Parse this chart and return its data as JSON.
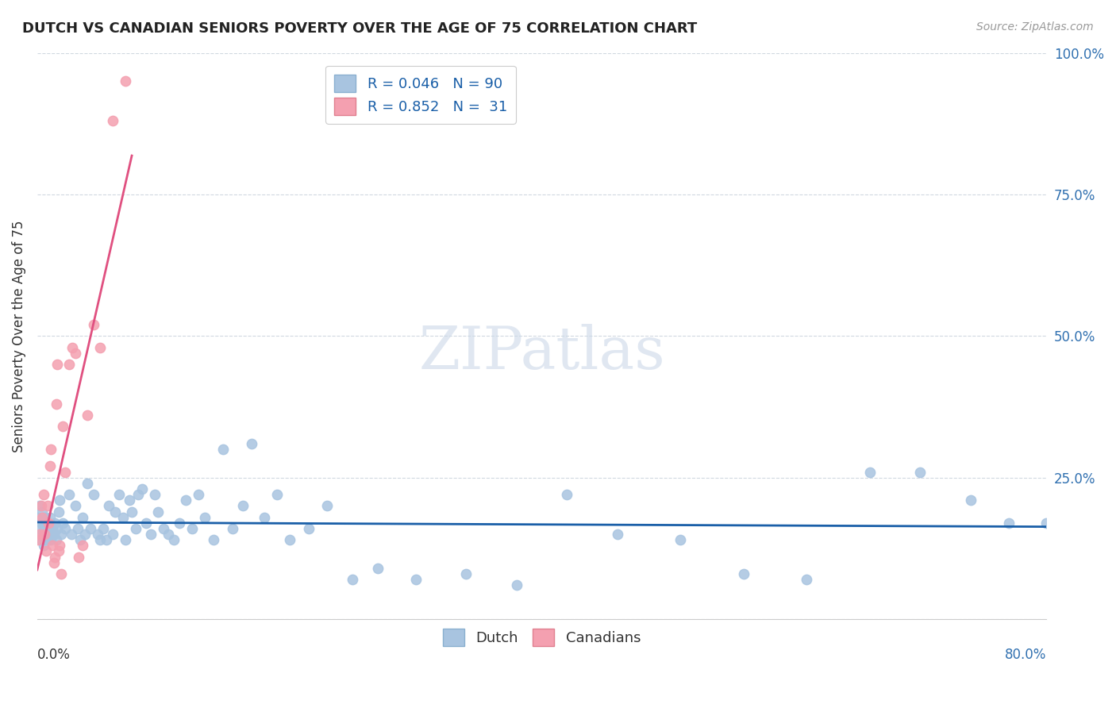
{
  "title": "DUTCH VS CANADIAN SENIORS POVERTY OVER THE AGE OF 75 CORRELATION CHART",
  "source": "Source: ZipAtlas.com",
  "ylabel": "Seniors Poverty Over the Age of 75",
  "yticks": [
    0.0,
    0.25,
    0.5,
    0.75,
    1.0
  ],
  "ytick_labels": [
    "",
    "25.0%",
    "50.0%",
    "75.0%",
    "100.0%"
  ],
  "xlim": [
    0.0,
    0.8
  ],
  "ylim": [
    0.0,
    1.0
  ],
  "dutch_x": [
    0.001,
    0.002,
    0.002,
    0.003,
    0.003,
    0.004,
    0.004,
    0.005,
    0.005,
    0.006,
    0.006,
    0.007,
    0.007,
    0.008,
    0.009,
    0.01,
    0.01,
    0.011,
    0.012,
    0.013,
    0.014,
    0.015,
    0.016,
    0.017,
    0.018,
    0.019,
    0.02,
    0.022,
    0.025,
    0.027,
    0.03,
    0.032,
    0.034,
    0.036,
    0.038,
    0.04,
    0.042,
    0.045,
    0.048,
    0.05,
    0.052,
    0.055,
    0.057,
    0.06,
    0.062,
    0.065,
    0.068,
    0.07,
    0.073,
    0.075,
    0.078,
    0.08,
    0.083,
    0.086,
    0.09,
    0.093,
    0.096,
    0.1,
    0.104,
    0.108,
    0.113,
    0.118,
    0.123,
    0.128,
    0.133,
    0.14,
    0.147,
    0.155,
    0.163,
    0.17,
    0.18,
    0.19,
    0.2,
    0.215,
    0.23,
    0.25,
    0.27,
    0.3,
    0.34,
    0.38,
    0.42,
    0.46,
    0.51,
    0.56,
    0.61,
    0.66,
    0.7,
    0.74,
    0.77,
    0.8
  ],
  "dutch_y": [
    0.18,
    0.16,
    0.2,
    0.14,
    0.17,
    0.15,
    0.19,
    0.13,
    0.16,
    0.14,
    0.18,
    0.15,
    0.17,
    0.14,
    0.16,
    0.15,
    0.18,
    0.14,
    0.16,
    0.15,
    0.17,
    0.14,
    0.16,
    0.19,
    0.21,
    0.15,
    0.17,
    0.16,
    0.22,
    0.15,
    0.2,
    0.16,
    0.14,
    0.18,
    0.15,
    0.24,
    0.16,
    0.22,
    0.15,
    0.14,
    0.16,
    0.14,
    0.2,
    0.15,
    0.19,
    0.22,
    0.18,
    0.14,
    0.21,
    0.19,
    0.16,
    0.22,
    0.23,
    0.17,
    0.15,
    0.22,
    0.19,
    0.16,
    0.15,
    0.14,
    0.17,
    0.21,
    0.16,
    0.22,
    0.18,
    0.14,
    0.3,
    0.16,
    0.2,
    0.31,
    0.18,
    0.22,
    0.14,
    0.16,
    0.2,
    0.07,
    0.09,
    0.07,
    0.08,
    0.06,
    0.22,
    0.15,
    0.14,
    0.08,
    0.07,
    0.26,
    0.26,
    0.21,
    0.17,
    0.17
  ],
  "canadians_x": [
    0.001,
    0.002,
    0.003,
    0.004,
    0.005,
    0.006,
    0.007,
    0.008,
    0.009,
    0.01,
    0.011,
    0.012,
    0.013,
    0.014,
    0.015,
    0.016,
    0.017,
    0.018,
    0.019,
    0.02,
    0.022,
    0.025,
    0.028,
    0.03,
    0.033,
    0.036,
    0.04,
    0.045,
    0.05,
    0.06,
    0.07
  ],
  "canadians_y": [
    0.14,
    0.15,
    0.2,
    0.18,
    0.22,
    0.15,
    0.12,
    0.2,
    0.17,
    0.27,
    0.3,
    0.13,
    0.1,
    0.11,
    0.38,
    0.45,
    0.12,
    0.13,
    0.08,
    0.34,
    0.26,
    0.45,
    0.48,
    0.47,
    0.11,
    0.13,
    0.36,
    0.52,
    0.48,
    0.88,
    0.95
  ],
  "dutch_line_color": "#1a5fa8",
  "canadian_line_color": "#e05080",
  "dutch_dot_color": "#a8c4e0",
  "canadian_dot_color": "#f4a0b0",
  "background_color": "#ffffff",
  "grid_color": "#d0d8e0",
  "legend1_label1": "R = 0.046   N = 90",
  "legend1_label2": "R = 0.852   N =  31",
  "legend2_label1": "Dutch",
  "legend2_label2": "Canadians"
}
